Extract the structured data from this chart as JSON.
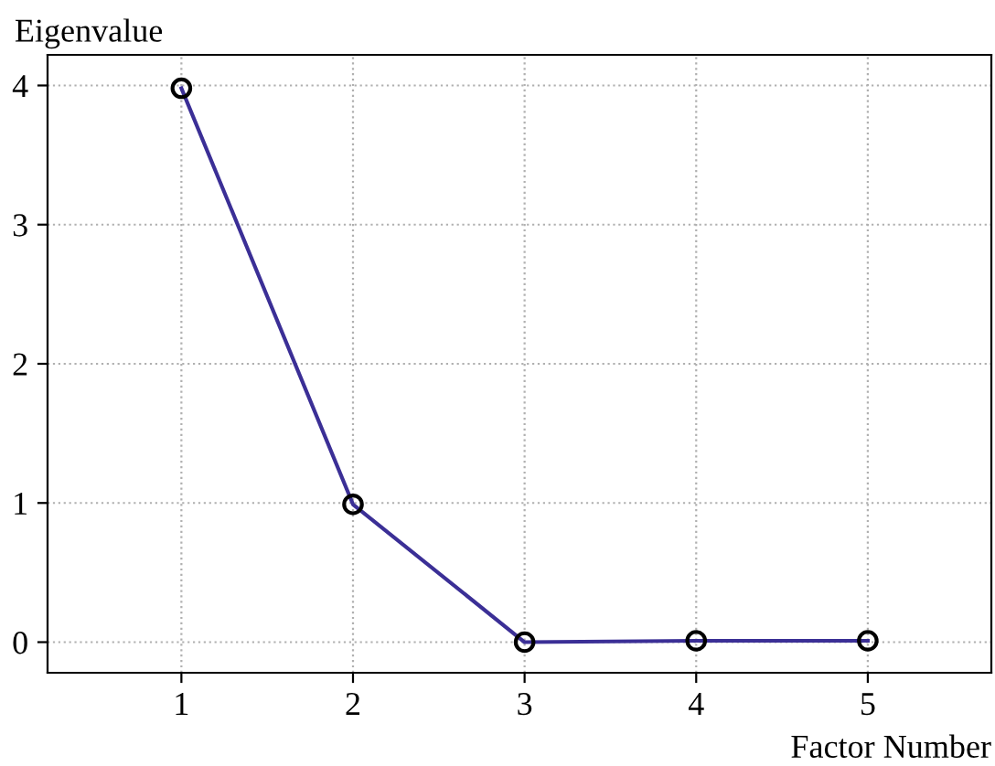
{
  "chart_data": {
    "type": "line",
    "xlabel": "Factor Number",
    "ylabel": "Eigenvalue",
    "x": [
      1,
      2,
      3,
      4,
      5
    ],
    "series": [
      {
        "color": "#3b2f96",
        "values": [
          3.98,
          0.99,
          0.0,
          0.01,
          0.01
        ]
      }
    ],
    "xlim": [
      0.22,
      5.72
    ],
    "xticks": [
      1,
      2,
      3,
      4,
      5
    ],
    "ylim": [
      -0.22,
      4.22
    ],
    "yticks": [
      0,
      1,
      2,
      3,
      4
    ],
    "grid": true,
    "marker": "circle",
    "line_style": "solid"
  }
}
